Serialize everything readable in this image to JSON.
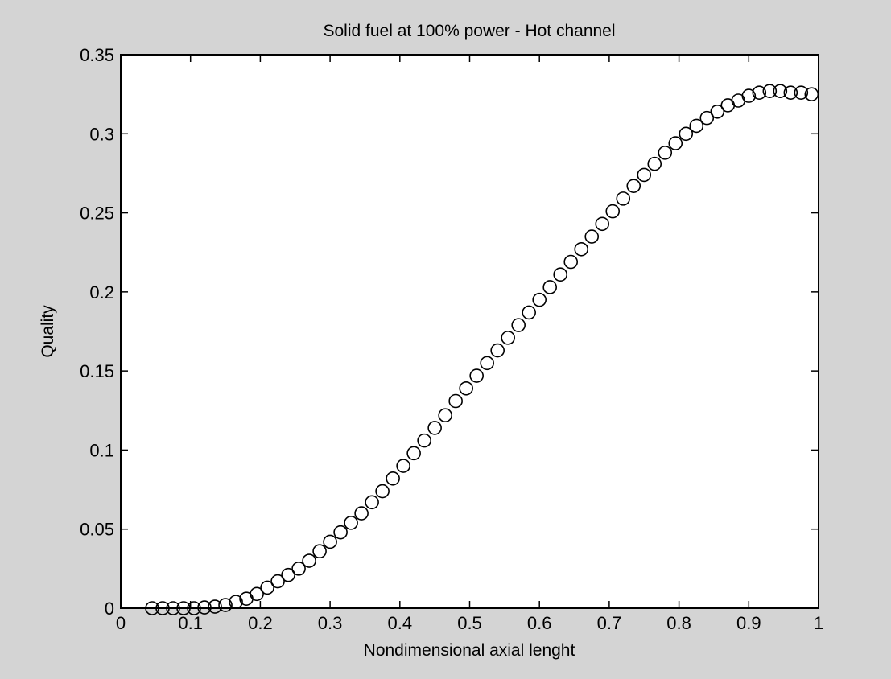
{
  "chart_data": {
    "type": "scatter",
    "title": "Solid fuel at 100% power - Hot channel",
    "xlabel": "Nondimensional axial lenght",
    "ylabel": "Quality",
    "xlim": [
      0,
      1
    ],
    "ylim": [
      0,
      0.35
    ],
    "xticks": [
      "0",
      "0.1",
      "0.2",
      "0.3",
      "0.4",
      "0.5",
      "0.6",
      "0.7",
      "0.8",
      "0.9",
      "1"
    ],
    "yticks": [
      "0",
      "0.05",
      "0.1",
      "0.15",
      "0.2",
      "0.25",
      "0.3",
      "0.35"
    ],
    "marker": "circle",
    "grid": false,
    "series": [
      {
        "x": [
          0.045,
          0.06,
          0.075,
          0.09,
          0.105,
          0.12,
          0.135,
          0.15,
          0.165,
          0.18,
          0.195,
          0.21,
          0.225,
          0.24,
          0.255,
          0.27,
          0.285,
          0.3,
          0.315,
          0.33,
          0.345,
          0.36,
          0.375,
          0.39,
          0.405,
          0.42,
          0.435,
          0.45,
          0.465,
          0.48,
          0.495,
          0.51,
          0.525,
          0.54,
          0.555,
          0.57,
          0.585,
          0.6,
          0.615,
          0.63,
          0.645,
          0.66,
          0.675,
          0.69,
          0.705,
          0.72,
          0.735,
          0.75,
          0.765,
          0.78,
          0.795,
          0.81,
          0.825,
          0.84,
          0.855,
          0.87,
          0.885,
          0.9,
          0.915,
          0.93,
          0.945,
          0.96,
          0.975,
          0.99
        ],
        "y": [
          0,
          0,
          0,
          0,
          0,
          0.0005,
          0.001,
          0.002,
          0.004,
          0.006,
          0.009,
          0.013,
          0.017,
          0.021,
          0.025,
          0.03,
          0.036,
          0.042,
          0.048,
          0.054,
          0.06,
          0.067,
          0.074,
          0.082,
          0.09,
          0.098,
          0.106,
          0.114,
          0.122,
          0.131,
          0.139,
          0.147,
          0.155,
          0.163,
          0.171,
          0.179,
          0.187,
          0.195,
          0.203,
          0.211,
          0.219,
          0.227,
          0.235,
          0.243,
          0.251,
          0.259,
          0.267,
          0.274,
          0.281,
          0.288,
          0.294,
          0.3,
          0.305,
          0.31,
          0.314,
          0.318,
          0.321,
          0.324,
          0.326,
          0.327,
          0.327,
          0.326,
          0.326,
          0.325
        ]
      }
    ]
  }
}
